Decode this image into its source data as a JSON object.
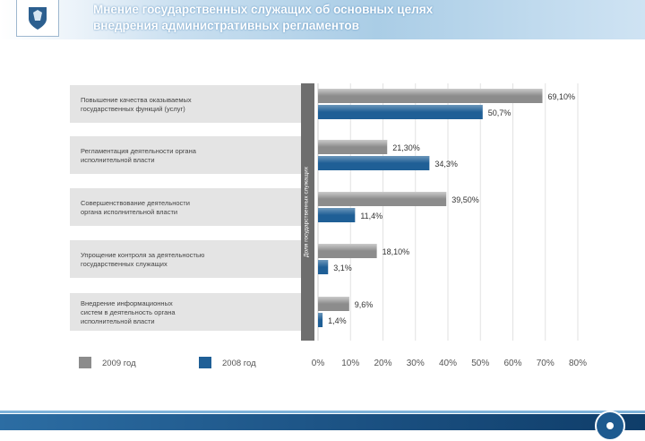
{
  "header": {
    "title_line1": "Мнение государственных служащих об основных целях",
    "title_line2": "внедрения административных регламентов"
  },
  "chart_data": {
    "type": "bar",
    "orientation": "horizontal",
    "categories": [
      [
        "Повышение качества оказываемых",
        "государственных функций (услуг)"
      ],
      [
        "Регламентация деятельности органа",
        "исполнительной власти"
      ],
      [
        "Совершенствование деятельности",
        "органа исполнительной власти"
      ],
      [
        "Упрощение контроля за деятельностью",
        "государственных служащих"
      ],
      [
        "Внедрение информационных",
        "систем в деятельность органа",
        "исполнительной власти"
      ]
    ],
    "series": [
      {
        "name": "2009 год",
        "values": [
          69.1,
          21.3,
          39.5,
          18.1,
          9.6
        ],
        "labels": [
          "69,10%",
          "21,30%",
          "39,50%",
          "18,10%",
          "9,6%"
        ],
        "color": "#8c8c8c"
      },
      {
        "name": "2008 год",
        "values": [
          50.7,
          34.3,
          11.4,
          3.1,
          1.4
        ],
        "labels": [
          "50,7%",
          "34,3%",
          "11,4%",
          "3,1%",
          "1,4%"
        ],
        "color": "#1f5f96"
      }
    ],
    "xlim": [
      0,
      80
    ],
    "ticks": [
      "0%",
      "10%",
      "20%",
      "30%",
      "40%",
      "50%",
      "60%",
      "70%",
      "80%"
    ],
    "axis_title": "Доля государственных служащих",
    "legend_position": "bottom-left"
  }
}
